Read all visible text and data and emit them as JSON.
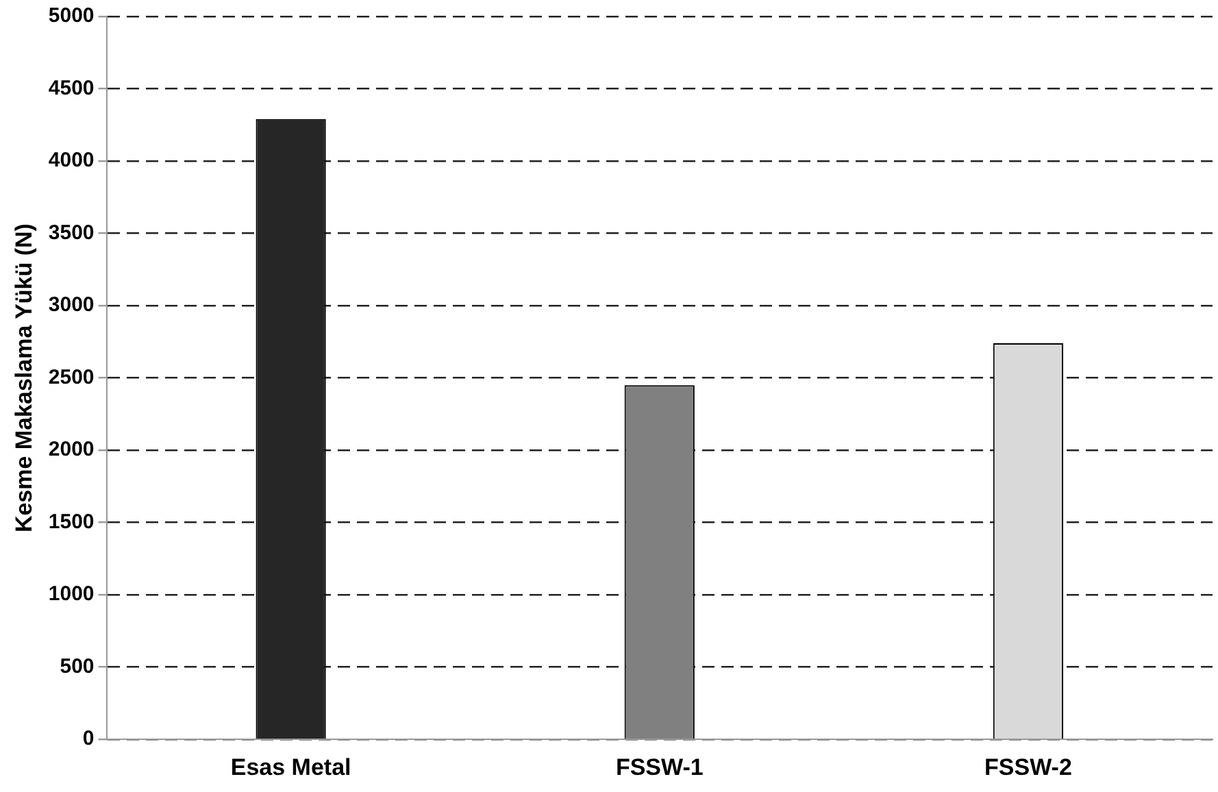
{
  "chart_data": {
    "type": "bar",
    "ylabel": "Kesme Makaslama Yükü (N)",
    "categories": [
      "Esas Metal",
      "FSSW-1",
      "FSSW-2"
    ],
    "values": [
      4290,
      2450,
      2740
    ],
    "colors": [
      "#262626",
      "#808080",
      "#d9d9d9"
    ],
    "ylim": [
      0,
      5000
    ],
    "yticks": [
      0,
      500,
      1000,
      1500,
      2000,
      2500,
      3000,
      3500,
      4000,
      4500,
      5000
    ],
    "grid": "y",
    "legend": false
  }
}
